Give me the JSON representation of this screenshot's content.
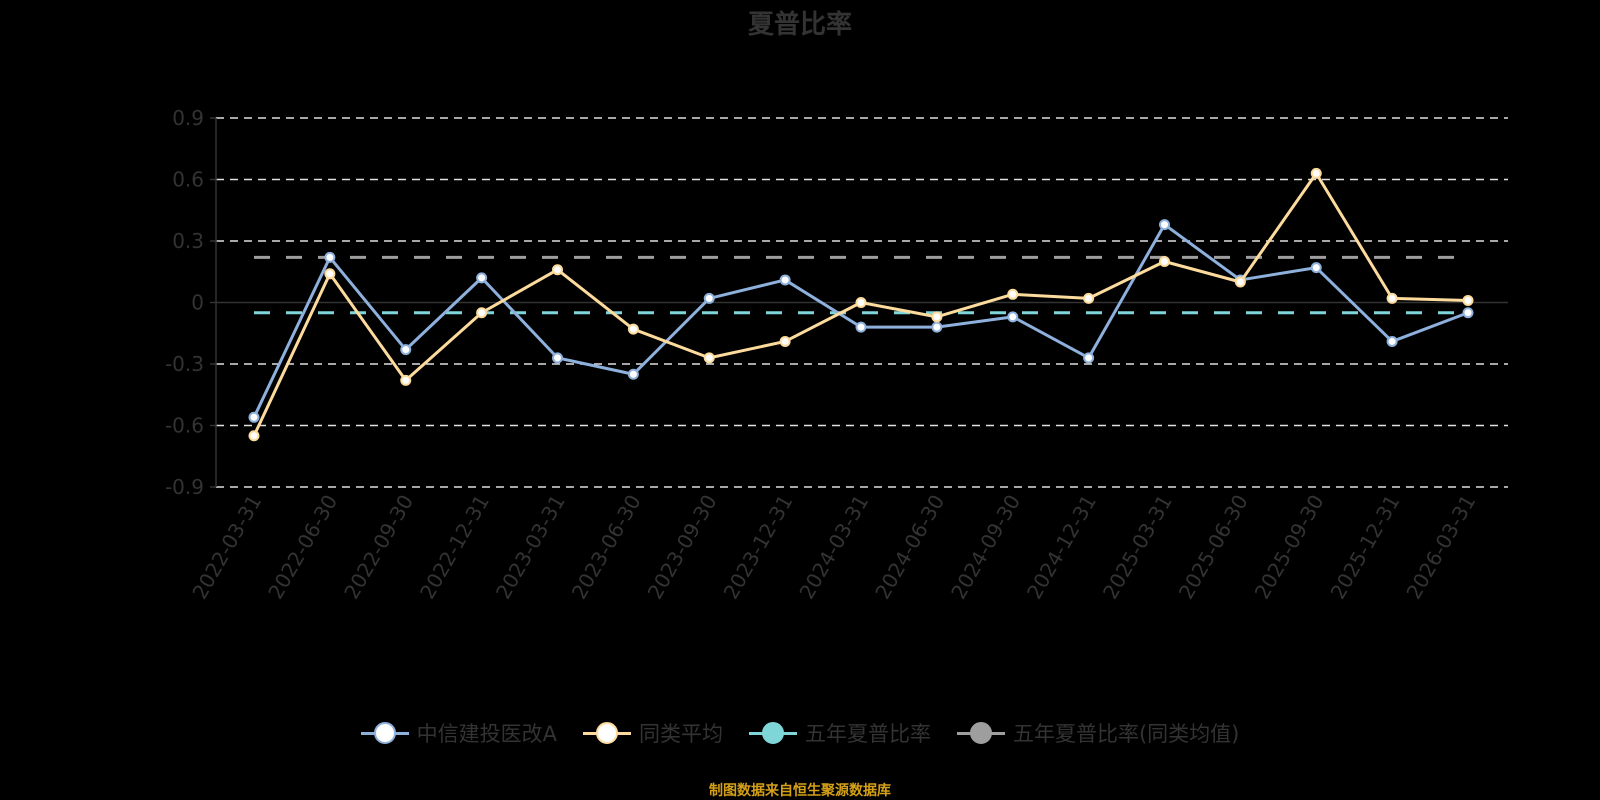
{
  "title": "夏普比率",
  "source_note": "制图数据来自恒生聚源数据库",
  "colors": {
    "fund": "#8eb0dd",
    "average": "#fddb9c",
    "five_year_fund": "#7fd6d8",
    "five_year_average": "#9e9e9e",
    "grid": "#e0e0e0",
    "axis": "#333333",
    "text": "#333333",
    "source": "#d4a017"
  },
  "legend": [
    {
      "label": "中信建投医改A",
      "key": "fund"
    },
    {
      "label": "同类平均",
      "key": "average"
    },
    {
      "label": "五年夏普比率",
      "key": "five_year_fund"
    },
    {
      "label": "五年夏普比率(同类均值)",
      "key": "five_year_average"
    }
  ],
  "chart_data": {
    "type": "line",
    "title": "夏普比率",
    "xlabel": "",
    "ylabel": "",
    "ylim": [
      -0.9,
      0.9
    ],
    "yticks": [
      0.9,
      0.6,
      0.3,
      0,
      -0.3,
      -0.6,
      -0.9
    ],
    "grid": true,
    "legend_position": "bottom",
    "categories": [
      "2022-03-31",
      "2022-06-30",
      "2022-09-30",
      "2022-12-31",
      "2023-03-31",
      "2023-06-30",
      "2023-09-30",
      "2023-12-31",
      "2024-03-31",
      "2024-06-30",
      "2024-09-30",
      "2024-12-31",
      "2025-03-31",
      "2025-06-30",
      "2025-09-30",
      "2025-12-31",
      "2026-03-31"
    ],
    "series": [
      {
        "name": "中信建投医改A",
        "values": [
          -0.56,
          0.22,
          -0.23,
          0.12,
          -0.27,
          -0.35,
          0.02,
          0.11,
          -0.12,
          -0.12,
          -0.07,
          -0.27,
          0.38,
          0.11,
          0.17,
          -0.19,
          -0.05
        ]
      },
      {
        "name": "同类平均",
        "values": [
          -0.65,
          0.14,
          -0.38,
          -0.05,
          0.16,
          -0.13,
          -0.27,
          -0.19,
          0.0,
          -0.07,
          0.04,
          0.02,
          0.2,
          0.1,
          0.63,
          0.02,
          0.01
        ]
      }
    ],
    "reference_lines": [
      {
        "name": "五年夏普比率",
        "value": -0.05,
        "style": "dashed"
      },
      {
        "name": "五年夏普比率(同类均值)",
        "value": 0.22,
        "style": "dashed"
      }
    ]
  }
}
